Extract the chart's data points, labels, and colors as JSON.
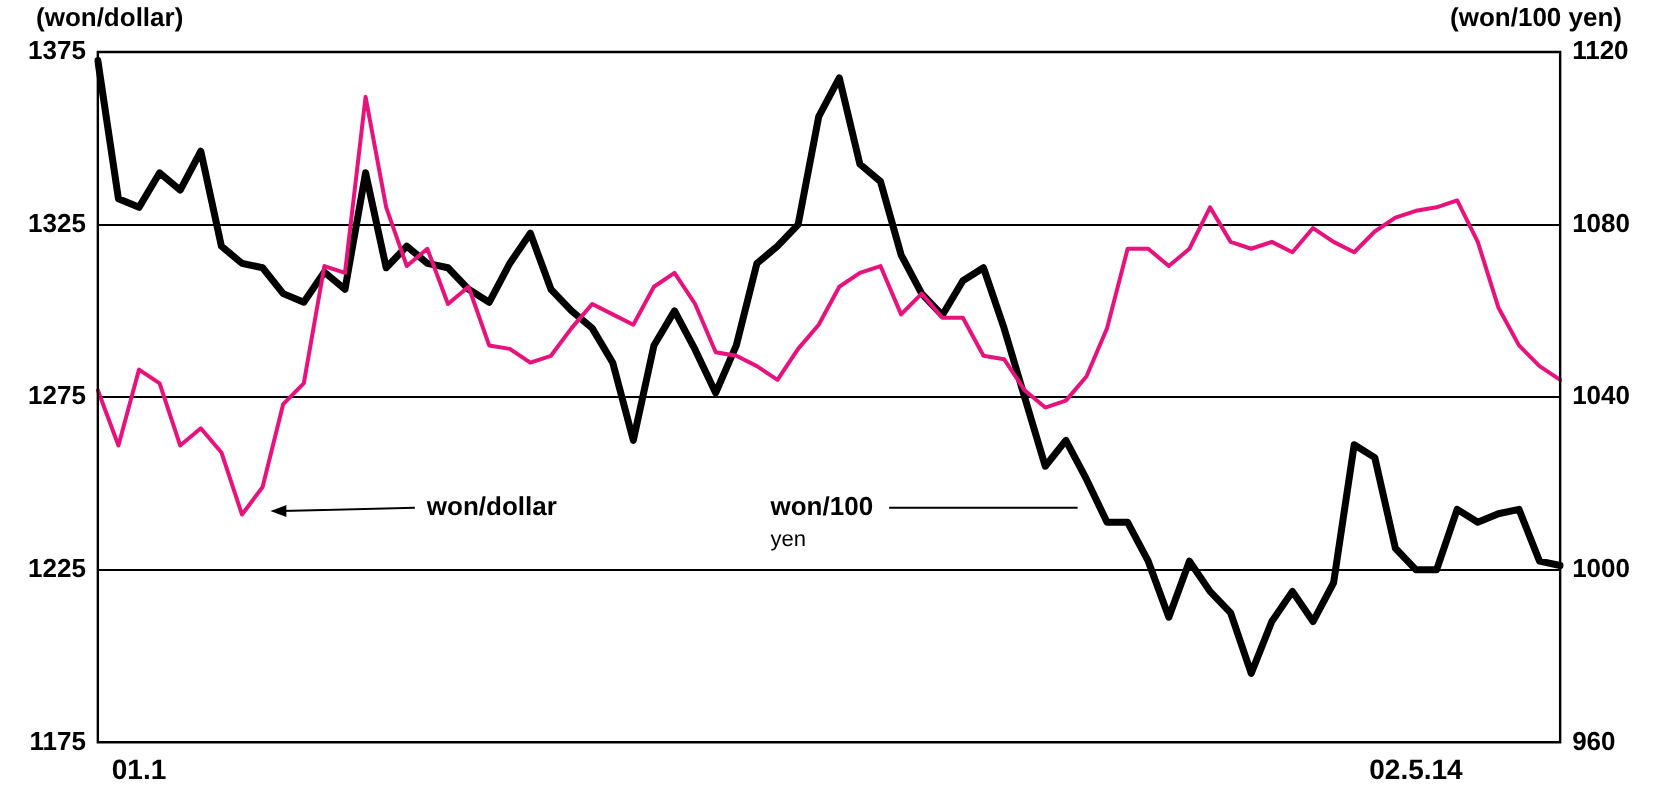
{
  "chart_data": {
    "type": "line",
    "ylabel": "(won/dollar)",
    "y2label": "(won/100 yen)",
    "categories": [
      null,
      null,
      "01.1",
      null,
      null,
      null,
      null,
      null,
      null,
      null,
      null,
      null,
      null,
      null,
      null,
      null,
      null,
      null,
      null,
      null,
      null,
      null,
      null,
      null,
      null,
      null,
      null,
      null,
      null,
      null,
      null,
      null,
      null,
      null,
      null,
      null,
      null,
      null,
      null,
      null,
      null,
      null,
      null,
      null,
      null,
      null,
      null,
      null,
      null,
      null,
      null,
      null,
      null,
      null,
      null,
      null,
      null,
      null,
      null,
      null,
      null,
      null,
      null,
      null,
      "02.5.14",
      null,
      null,
      null,
      null,
      null,
      null,
      null
    ],
    "series": [
      {
        "color": "#e8127c",
        "values": [
          1277,
          1261,
          1283,
          1279,
          1261,
          1266,
          1259,
          1241,
          1249,
          1273,
          1279,
          1313,
          1311,
          1362,
          1330,
          1313,
          1318,
          1302,
          1307,
          1290,
          1289,
          1285,
          1287,
          1295,
          1302,
          1299,
          1296,
          1307,
          1311,
          1302,
          1288,
          1287,
          1284,
          1280,
          1289,
          1296,
          1307,
          1311,
          1313,
          1299,
          1305,
          1298,
          1298,
          1287,
          1286,
          1277,
          1272,
          1274,
          1281,
          1295,
          1318,
          1318,
          1313,
          1318,
          1330,
          1320,
          1318,
          1320,
          1317,
          1324,
          1320,
          1317,
          1323,
          1327,
          1329,
          1330,
          1332,
          1320,
          1301,
          1290,
          1284,
          1280
        ]
      },
      {
        "color": "#000000",
        "axis": "y2",
        "values": [
          1118,
          1086,
          1084,
          1092,
          1088,
          1097,
          1075,
          1071,
          1070,
          1064,
          1062,
          1069,
          1065,
          1092,
          1070,
          1075,
          1071,
          1070,
          1065,
          1062,
          1071,
          1078,
          1065,
          1060,
          1056,
          1048,
          1030,
          1052,
          1060,
          1051,
          1041,
          1052,
          1071,
          1075,
          1080,
          1105,
          1114,
          1094,
          1090,
          1073,
          1064,
          1059,
          1067,
          1070,
          1056,
          1040,
          1024,
          1030,
          1021,
          1011,
          1011,
          1002,
          989,
          1002,
          995,
          990,
          976,
          988,
          995,
          988,
          997,
          1029,
          1026,
          1005,
          1000,
          1000,
          1014,
          1011,
          1013,
          1014,
          1002,
          1001
        ]
      }
    ],
    "ylim": [
      1175,
      1375
    ],
    "yticks": [
      1175,
      1225,
      1275,
      1325,
      1375
    ],
    "y2lim": [
      960,
      1120
    ],
    "y2ticks": [
      960,
      1000,
      1040,
      1080,
      1120
    ],
    "grid": "y",
    "legend": false,
    "marker": "none",
    "line_style": "solid",
    "annotations": [
      "won/dollar",
      "won/100 yen"
    ]
  }
}
